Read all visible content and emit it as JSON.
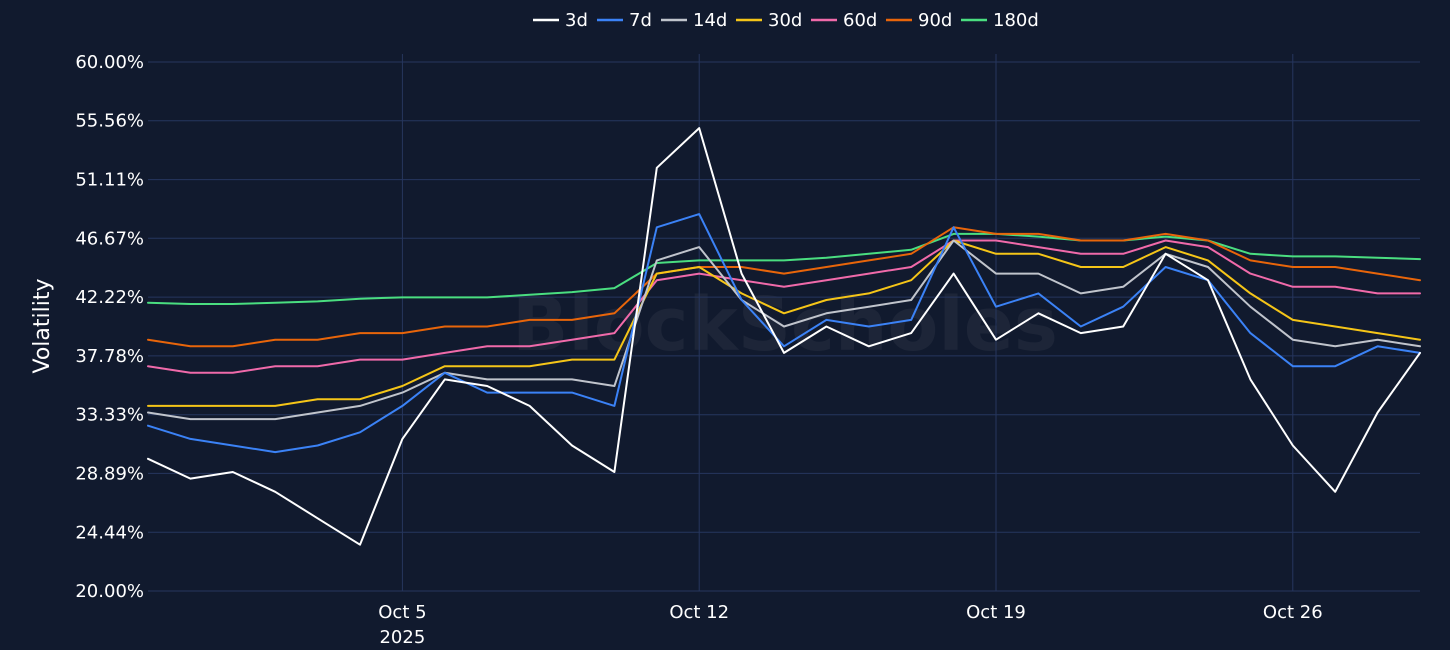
{
  "chart_data": {
    "type": "line",
    "title": "",
    "xlabel": "",
    "ylabel": "Volatility",
    "watermark": "BlockScholes",
    "grid": true,
    "legend_position": "top-center",
    "x_range": [
      "2025-09-29",
      "2025-10-29"
    ],
    "ylim": [
      20.0,
      60.0
    ],
    "y_ticks": [
      20.0,
      24.44,
      28.89,
      33.33,
      37.78,
      42.22,
      46.67,
      51.11,
      55.56,
      60.0
    ],
    "y_tick_labels": [
      "20.00%",
      "24.44%",
      "28.89%",
      "33.33%",
      "37.78%",
      "42.22%",
      "46.67%",
      "51.11%",
      "55.56%",
      "60.00%"
    ],
    "x_ticks": [
      {
        "date": "2025-10-05",
        "label": "Oct 5",
        "sublabel": "2025"
      },
      {
        "date": "2025-10-12",
        "label": "Oct 12",
        "sublabel": ""
      },
      {
        "date": "2025-10-19",
        "label": "Oct 19",
        "sublabel": ""
      },
      {
        "date": "2025-10-26",
        "label": "Oct 26",
        "sublabel": ""
      }
    ],
    "x": [
      "2025-09-29",
      "2025-09-30",
      "2025-10-01",
      "2025-10-02",
      "2025-10-03",
      "2025-10-04",
      "2025-10-05",
      "2025-10-06",
      "2025-10-07",
      "2025-10-08",
      "2025-10-09",
      "2025-10-10",
      "2025-10-11",
      "2025-10-12",
      "2025-10-13",
      "2025-10-14",
      "2025-10-15",
      "2025-10-16",
      "2025-10-17",
      "2025-10-18",
      "2025-10-19",
      "2025-10-20",
      "2025-10-21",
      "2025-10-22",
      "2025-10-23",
      "2025-10-24",
      "2025-10-25",
      "2025-10-26",
      "2025-10-27",
      "2025-10-28",
      "2025-10-29"
    ],
    "series": [
      {
        "name": "3d",
        "color": "#ffffff",
        "values": [
          30.0,
          28.5,
          29.0,
          27.5,
          25.5,
          23.5,
          31.5,
          36.0,
          35.5,
          34.0,
          31.0,
          29.0,
          52.0,
          55.0,
          44.0,
          38.0,
          40.0,
          38.5,
          39.5,
          44.0,
          39.0,
          41.0,
          39.5,
          40.0,
          45.5,
          43.5,
          36.0,
          31.0,
          27.5,
          33.5,
          38.0
        ]
      },
      {
        "name": "7d",
        "color": "#3b82f6",
        "values": [
          32.5,
          31.5,
          31.0,
          30.5,
          31.0,
          32.0,
          34.0,
          36.5,
          35.0,
          35.0,
          35.0,
          34.0,
          47.5,
          48.5,
          42.0,
          38.5,
          40.5,
          40.0,
          40.5,
          47.5,
          41.5,
          42.5,
          40.0,
          41.5,
          44.5,
          43.5,
          39.5,
          37.0,
          37.0,
          38.5,
          38.0
        ]
      },
      {
        "name": "14d",
        "color": "#c0c4cc",
        "values": [
          33.5,
          33.0,
          33.0,
          33.0,
          33.5,
          34.0,
          35.0,
          36.5,
          36.0,
          36.0,
          36.0,
          35.5,
          45.0,
          46.0,
          42.0,
          40.0,
          41.0,
          41.5,
          42.0,
          46.5,
          44.0,
          44.0,
          42.5,
          43.0,
          45.5,
          44.5,
          41.5,
          39.0,
          38.5,
          39.0,
          38.5
        ]
      },
      {
        "name": "30d",
        "color": "#f5c518",
        "values": [
          34.0,
          34.0,
          34.0,
          34.0,
          34.5,
          34.5,
          35.5,
          37.0,
          37.0,
          37.0,
          37.5,
          37.5,
          44.0,
          44.5,
          42.5,
          41.0,
          42.0,
          42.5,
          43.5,
          46.5,
          45.5,
          45.5,
          44.5,
          44.5,
          46.0,
          45.0,
          42.5,
          40.5,
          40.0,
          39.5,
          39.0
        ]
      },
      {
        "name": "60d",
        "color": "#f06aaa",
        "values": [
          37.0,
          36.5,
          36.5,
          37.0,
          37.0,
          37.5,
          37.5,
          38.0,
          38.5,
          38.5,
          39.0,
          39.5,
          43.5,
          44.0,
          43.5,
          43.0,
          43.5,
          44.0,
          44.5,
          46.5,
          46.5,
          46.0,
          45.5,
          45.5,
          46.5,
          46.0,
          44.0,
          43.0,
          43.0,
          42.5,
          42.5
        ]
      },
      {
        "name": "90d",
        "color": "#e8650a",
        "values": [
          39.0,
          38.5,
          38.5,
          39.0,
          39.0,
          39.5,
          39.5,
          40.0,
          40.0,
          40.5,
          40.5,
          41.0,
          44.0,
          44.5,
          44.5,
          44.0,
          44.5,
          45.0,
          45.5,
          47.5,
          47.0,
          47.0,
          46.5,
          46.5,
          47.0,
          46.5,
          45.0,
          44.5,
          44.5,
          44.0,
          43.5
        ]
      },
      {
        "name": "180d",
        "color": "#4ade80",
        "values": [
          41.8,
          41.7,
          41.7,
          41.8,
          41.9,
          42.1,
          42.2,
          42.2,
          42.2,
          42.4,
          42.6,
          42.9,
          44.8,
          45.0,
          45.0,
          45.0,
          45.2,
          45.5,
          45.8,
          47.0,
          47.0,
          46.8,
          46.5,
          46.5,
          46.8,
          46.5,
          45.5,
          45.3,
          45.3,
          45.2,
          45.1
        ]
      }
    ]
  }
}
